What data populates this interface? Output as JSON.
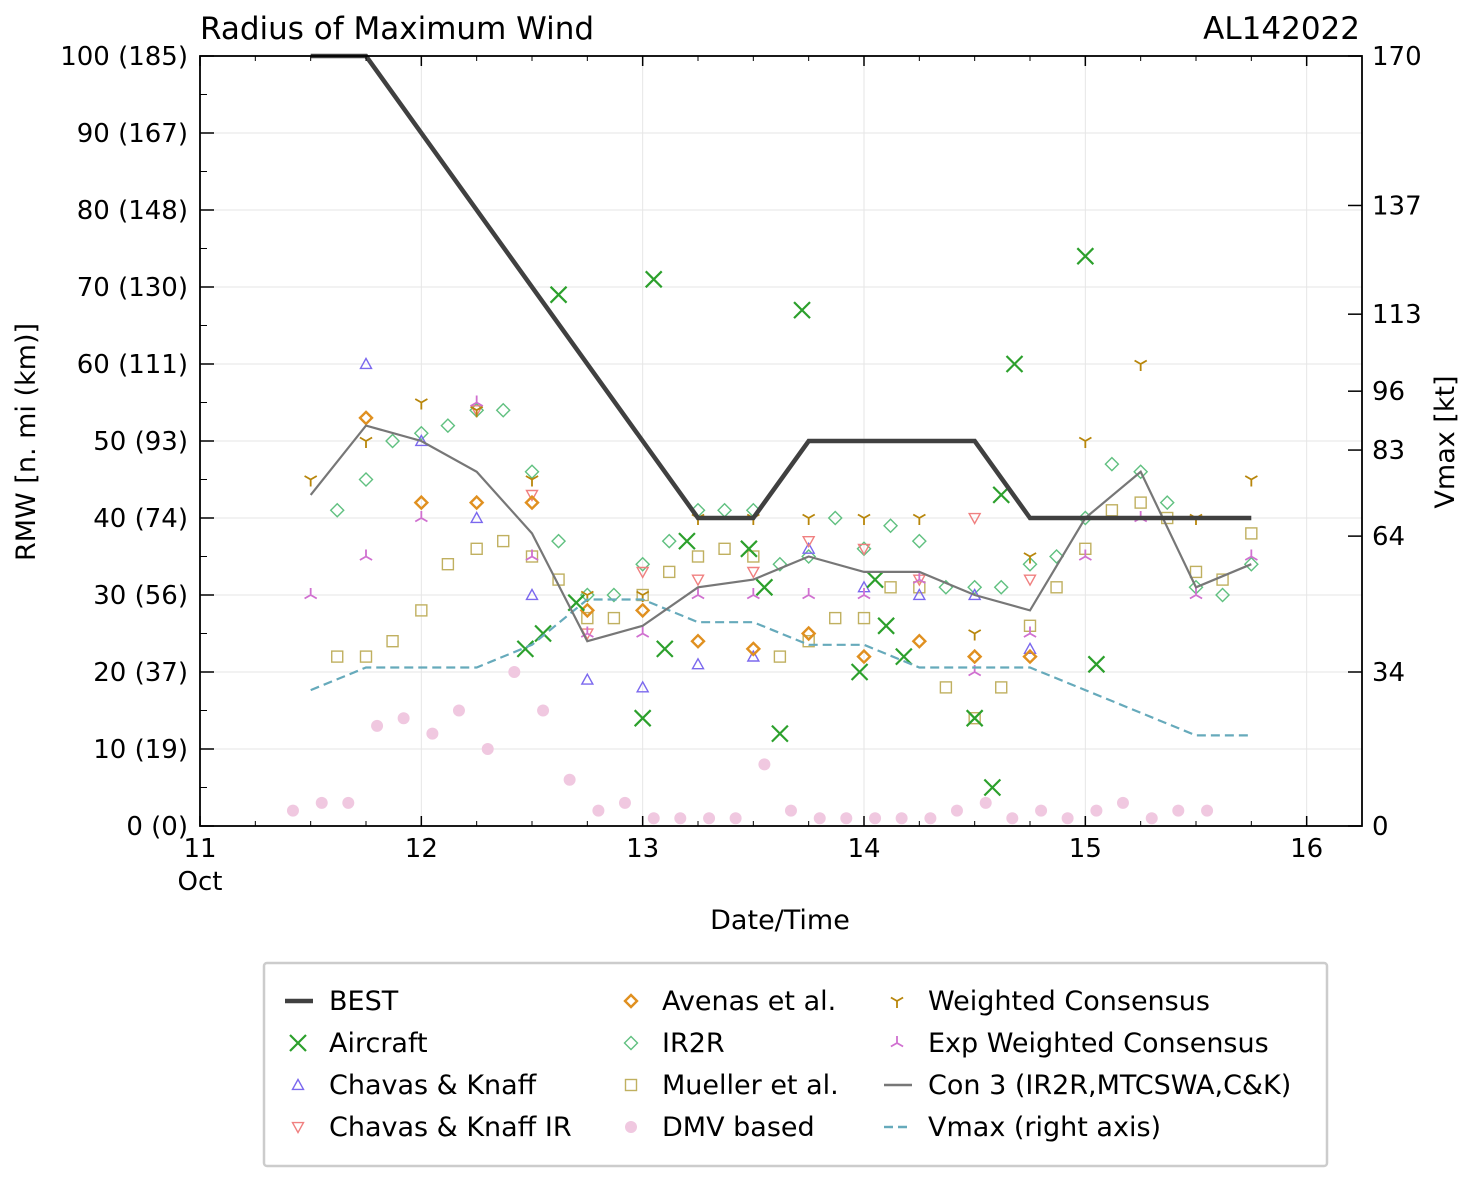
{
  "chart_data": {
    "type": "scatter",
    "title": "Radius of Maximum Wind",
    "storm_id": "AL142022",
    "xlabel": "Date/Time",
    "ylabel": "RMW [n. mi (km)]",
    "y2label": "Vmax [kt]",
    "xlim": [
      11,
      16.25
    ],
    "ylim": [
      0,
      100
    ],
    "x_ticks": [
      11,
      12,
      13,
      14,
      15,
      16
    ],
    "x_tick_labels": [
      "11",
      "12",
      "13",
      "14",
      "15",
      "16"
    ],
    "x_month_label": "Oct",
    "y_ticks": [
      0,
      10,
      20,
      30,
      40,
      50,
      60,
      70,
      80,
      90,
      100
    ],
    "y_tick_labels": [
      "0 (0)",
      "10 (19)",
      "20 (37)",
      "30 (56)",
      "40 (74)",
      "50 (93)",
      "60 (111)",
      "70 (130)",
      "80 (148)",
      "90 (167)",
      "100 (185)"
    ],
    "y2_ticks": [
      0,
      34,
      64,
      83,
      96,
      113,
      137,
      170
    ],
    "y2_lim": [
      0,
      170
    ],
    "grid": true,
    "legend_position": "bottom",
    "series": [
      {
        "name": "BEST",
        "kind": "line",
        "color": "#404040",
        "x": [
          11.5,
          11.75,
          13.25,
          13.5,
          13.75,
          14.0,
          14.25,
          14.5,
          14.75,
          15.0,
          15.25,
          15.5,
          15.75
        ],
        "y": [
          100,
          100,
          40,
          40,
          50,
          50,
          50,
          50,
          40,
          40,
          40,
          40,
          40
        ]
      },
      {
        "name": "Aircraft",
        "kind": "marker",
        "marker": "x",
        "color": "#2ca02c",
        "x": [
          12.47,
          12.55,
          12.62,
          12.7,
          13.0,
          13.05,
          13.1,
          13.2,
          13.48,
          13.55,
          13.62,
          13.72,
          13.98,
          14.05,
          14.1,
          14.18,
          14.5,
          14.58,
          14.62,
          14.68,
          15.0,
          15.05
        ],
        "y": [
          23,
          25,
          69,
          29,
          14,
          71,
          23,
          37,
          36,
          31,
          12,
          67,
          20,
          32,
          26,
          22,
          14,
          5,
          43,
          60,
          74,
          21
        ]
      },
      {
        "name": "Chavas & Knaff",
        "kind": "marker",
        "marker": "triangle-up",
        "color": "#7b68ee",
        "x": [
          11.75,
          12.0,
          12.25,
          12.5,
          12.75,
          13.0,
          13.25,
          13.5,
          13.75,
          14.0,
          14.25,
          14.5,
          14.75
        ],
        "y": [
          60,
          50,
          40,
          30,
          19,
          18,
          21,
          22,
          36,
          31,
          30,
          30,
          23
        ]
      },
      {
        "name": "Chavas & Knaff IR",
        "kind": "marker",
        "marker": "triangle-down",
        "color": "#f08080",
        "x": [
          12.25,
          12.5,
          12.75,
          13.0,
          13.25,
          13.5,
          13.75,
          14.0,
          14.25,
          14.5,
          14.75
        ],
        "y": [
          54,
          43,
          25,
          33,
          32,
          33,
          37,
          36,
          32,
          40,
          32
        ]
      },
      {
        "name": "Avenas et al.",
        "kind": "marker",
        "marker": "diamond-bold",
        "color": "#e09020",
        "x": [
          11.75,
          12.0,
          12.25,
          12.5,
          12.75,
          13.0,
          13.25,
          13.5,
          13.75,
          14.0,
          14.25,
          14.5,
          14.75
        ],
        "y": [
          53,
          42,
          42,
          42,
          28,
          28,
          24,
          23,
          25,
          22,
          24,
          22,
          22
        ]
      },
      {
        "name": "IR2R",
        "kind": "marker",
        "marker": "diamond",
        "color": "#60c080",
        "x": [
          11.62,
          11.75,
          11.87,
          12.0,
          12.12,
          12.25,
          12.37,
          12.5,
          12.62,
          12.75,
          12.87,
          13.0,
          13.12,
          13.25,
          13.37,
          13.5,
          13.62,
          13.75,
          13.87,
          14.0,
          14.12,
          14.25,
          14.37,
          14.5,
          14.62,
          14.75,
          14.87,
          15.0,
          15.12,
          15.25,
          15.37,
          15.5,
          15.62,
          15.75
        ],
        "y": [
          41,
          45,
          50,
          51,
          52,
          54,
          54,
          46,
          37,
          30,
          30,
          34,
          37,
          41,
          41,
          41,
          34,
          35,
          40,
          36,
          39,
          37,
          31,
          31,
          31,
          34,
          35,
          40,
          47,
          46,
          42,
          31,
          30,
          34
        ]
      },
      {
        "name": "Mueller et al.",
        "kind": "marker",
        "marker": "square",
        "color": "#c0b060",
        "x": [
          11.62,
          11.75,
          11.87,
          12.0,
          12.12,
          12.25,
          12.37,
          12.5,
          12.62,
          12.75,
          12.87,
          13.0,
          13.12,
          13.25,
          13.37,
          13.5,
          13.62,
          13.75,
          13.87,
          14.0,
          14.12,
          14.25,
          14.37,
          14.5,
          14.62,
          14.75,
          14.87,
          15.0,
          15.12,
          15.25,
          15.37,
          15.5,
          15.62,
          15.75
        ],
        "y": [
          22,
          22,
          24,
          28,
          34,
          36,
          37,
          35,
          32,
          27,
          27,
          30,
          33,
          35,
          36,
          35,
          22,
          24,
          27,
          27,
          31,
          31,
          18,
          14,
          18,
          26,
          31,
          36,
          41,
          42,
          40,
          33,
          32,
          38
        ]
      },
      {
        "name": "DMV based",
        "kind": "marker",
        "marker": "circle-filled",
        "color": "#f0c8e0",
        "x": [
          11.42,
          11.55,
          11.67,
          11.8,
          11.92,
          12.05,
          12.17,
          12.3,
          12.42,
          12.55,
          12.67,
          12.8,
          12.92,
          13.05,
          13.17,
          13.3,
          13.42,
          13.55,
          13.67,
          13.8,
          13.92,
          14.05,
          14.17,
          14.3,
          14.42,
          14.55,
          14.67,
          14.8,
          14.92,
          15.05,
          15.17,
          15.3,
          15.42,
          15.55
        ],
        "y": [
          2,
          3,
          3,
          13,
          14,
          12,
          15,
          10,
          20,
          15,
          6,
          2,
          3,
          1,
          1,
          1,
          1,
          8,
          2,
          1,
          1,
          1,
          1,
          1,
          2,
          3,
          1,
          2,
          1,
          2,
          3,
          1,
          2,
          2
        ]
      },
      {
        "name": "Weighted Consensus",
        "kind": "marker",
        "marker": "tri-down",
        "color": "#b8860b",
        "x": [
          11.5,
          11.75,
          12.0,
          12.25,
          12.5,
          12.75,
          13.0,
          13.25,
          13.5,
          13.75,
          14.0,
          14.25,
          14.5,
          14.75,
          15.0,
          15.25,
          15.5,
          15.75
        ],
        "y": [
          45,
          50,
          55,
          54,
          45,
          30,
          30,
          40,
          40,
          40,
          40,
          40,
          25,
          35,
          50,
          60,
          40,
          45
        ]
      },
      {
        "name": "Exp Weighted Consensus",
        "kind": "marker",
        "marker": "tri-up",
        "color": "#d070d0",
        "x": [
          11.5,
          11.75,
          12.0,
          12.25,
          12.5,
          12.75,
          13.0,
          13.25,
          13.5,
          13.75,
          14.0,
          14.25,
          14.5,
          14.75,
          15.0,
          15.25,
          15.5,
          15.75
        ],
        "y": [
          30,
          35,
          40,
          55,
          35,
          25,
          25,
          30,
          30,
          30,
          30,
          32,
          20,
          25,
          35,
          40,
          30,
          35
        ]
      },
      {
        "name": "Con 3 (IR2R,MTCSWA,C&K)",
        "kind": "line",
        "color": "#777777",
        "x": [
          11.5,
          11.75,
          12.0,
          12.25,
          12.5,
          12.75,
          13.0,
          13.25,
          13.5,
          13.75,
          14.0,
          14.25,
          14.5,
          14.75,
          15.0,
          15.25,
          15.5,
          15.75
        ],
        "y": [
          43,
          52,
          50,
          46,
          38,
          24,
          26,
          31,
          32,
          35,
          33,
          33,
          30,
          28,
          40,
          46,
          31,
          34
        ]
      },
      {
        "name": "Vmax (right axis)",
        "kind": "line-dashed",
        "color": "#66aabb",
        "axis": "right",
        "x": [
          11.5,
          11.75,
          12.0,
          12.25,
          12.5,
          12.75,
          13.0,
          13.25,
          13.5,
          13.75,
          14.0,
          14.25,
          14.5,
          14.75,
          15.0,
          15.25,
          15.5,
          15.75
        ],
        "y": [
          30,
          35,
          35,
          35,
          40,
          50,
          50,
          45,
          45,
          40,
          40,
          35,
          35,
          35,
          30,
          25,
          20,
          20
        ]
      }
    ]
  }
}
